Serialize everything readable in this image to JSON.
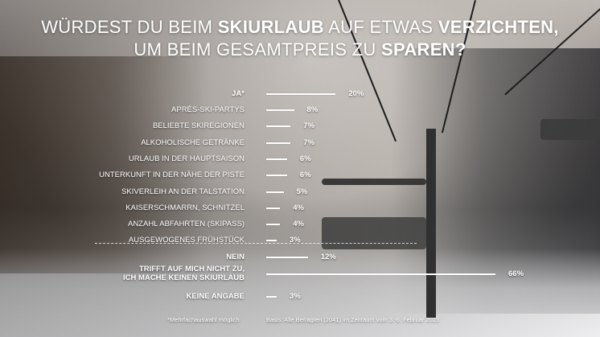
{
  "title": {
    "line1_a": "WÜRDEST DU BEIM ",
    "line1_b": "SKIURLAUB",
    "line1_c": " AUF ETWAS ",
    "line1_d": "VERZICHTEN,",
    "line2_a": "UM BEIM GESAMTPREIS ZU ",
    "line2_b": "SPAREN?"
  },
  "chart_data": {
    "type": "bar",
    "orientation": "horizontal",
    "xlim": [
      0,
      100
    ],
    "rows": [
      {
        "label": "JA*",
        "value": 20,
        "value_label": "20%",
        "main": true
      },
      {
        "label": "APRÈS-SKI-PARTYS",
        "value": 8,
        "value_label": "8%",
        "main": false
      },
      {
        "label": "BELIEBTE SKIREGIONEN",
        "value": 7,
        "value_label": "7%",
        "main": false
      },
      {
        "label": "ALKOHOLISCHE GETRÄNKE",
        "value": 7,
        "value_label": "7%",
        "main": false
      },
      {
        "label": "URLAUB IN DER HAUPTSAISON",
        "value": 6,
        "value_label": "6%",
        "main": false
      },
      {
        "label": "UNTERKUNFT IN DER NÄHE DER PISTE",
        "value": 6,
        "value_label": "6%",
        "main": false
      },
      {
        "label": "SKIVERLEIH AN DER TALSTATION",
        "value": 5,
        "value_label": "5%",
        "main": false
      },
      {
        "label": "KAISERSCHMARRN, SCHNITZEL",
        "value": 4,
        "value_label": "4%",
        "main": false
      },
      {
        "label": "ANZAHL ABFAHRTEN (SKIPASS)",
        "value": 4,
        "value_label": "4%",
        "main": false
      },
      {
        "label": "AUSGEWOGENES FRÜHSTÜCK",
        "value": 3,
        "value_label": "3%",
        "main": false
      },
      {
        "label": "NEIN",
        "value": 12,
        "value_label": "12%",
        "main": true
      },
      {
        "label": "TRIFFT AUF MICH NICHT ZU,",
        "label2": "ICH MACHE KEINEN SKIURLAUB",
        "value": 66,
        "value_label": "66%",
        "main": true
      },
      {
        "label": "KEINE ANGABE",
        "value": 3,
        "value_label": "3%",
        "main": true
      }
    ]
  },
  "footnote": "*Mehrfachauswahl möglich",
  "basis": "Basis: Alle Befragten (2041) im Zeitraum vom 3.-6. Februar 2023",
  "colors": {
    "text": "#ffffff",
    "bar": "#ffffff"
  }
}
